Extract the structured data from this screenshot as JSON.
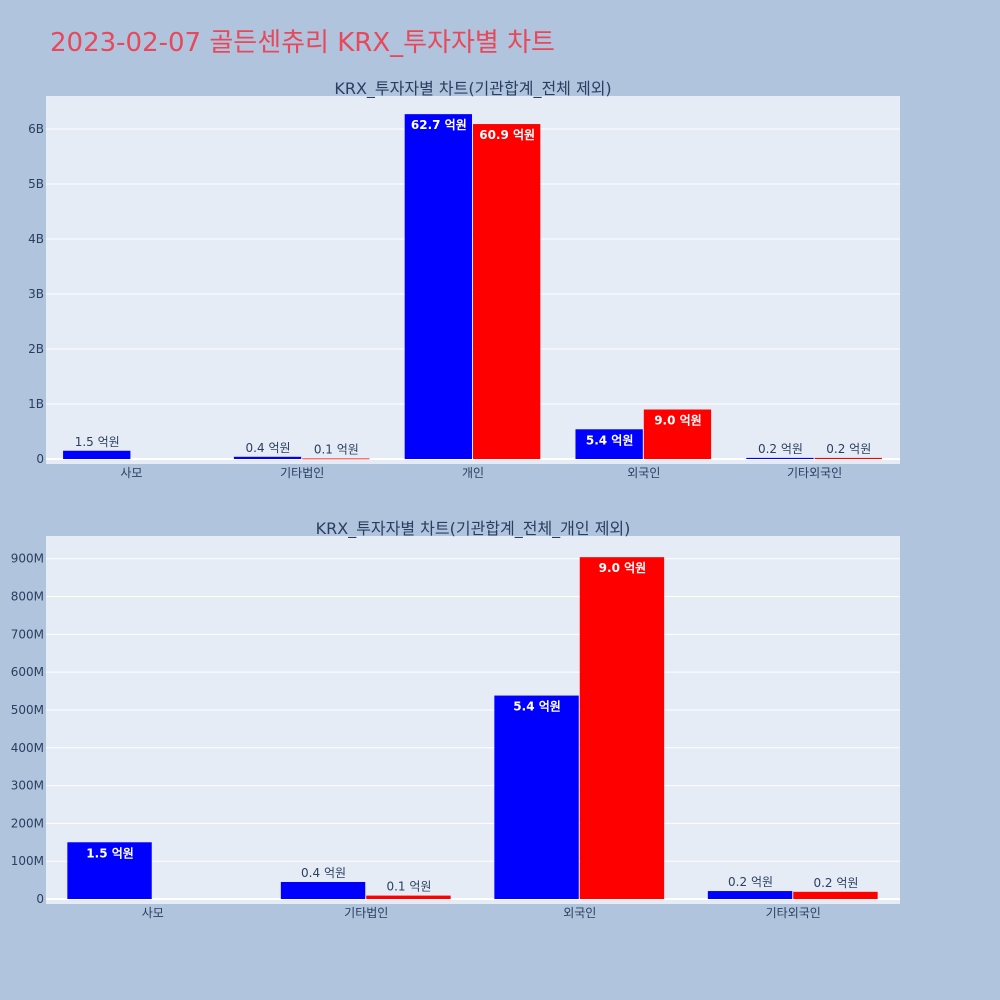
{
  "title": "2023-02-07 골든센츄리 KRX_투자자별 차트",
  "colors": {
    "buy": "#0000ff",
    "sell": "#ff0000"
  },
  "chart_data": [
    {
      "type": "bar",
      "title": "KRX_투자자별 차트(기관합계_전체 제외)",
      "categories": [
        "사모",
        "기타법인",
        "개인",
        "외국인",
        "기타외국인"
      ],
      "series": [
        {
          "values": [
            150000000,
            40000000,
            6270000000,
            540000000,
            20000000
          ],
          "labels": [
            "1.5 억원",
            "0.4 억원",
            "62.7 억원",
            "5.4 억원",
            "0.2 억원"
          ]
        },
        {
          "values": [
            0,
            10000000,
            6090000000,
            900000000,
            20000000
          ],
          "labels": [
            "",
            "0.1 억원",
            "60.9 억원",
            "9.0 억원",
            "0.2 억원"
          ]
        }
      ],
      "ylim": [
        0,
        6600000000
      ],
      "yticks": [
        0,
        1000000000,
        2000000000,
        3000000000,
        4000000000,
        5000000000,
        6000000000
      ],
      "yticklabels": [
        "0",
        "1B",
        "2B",
        "3B",
        "4B",
        "5B",
        "6B"
      ],
      "grid": true
    },
    {
      "type": "bar",
      "title": "KRX_투자자별 차트(기관합계_전체_개인 제외)",
      "categories": [
        "사모",
        "기타법인",
        "외국인",
        "기타외국인"
      ],
      "series": [
        {
          "values": [
            150000000,
            45000000,
            538000000,
            21000000
          ],
          "labels": [
            "1.5 억원",
            "0.4 억원",
            "5.4 억원",
            "0.2 억원"
          ]
        },
        {
          "values": [
            0,
            9000000,
            904000000,
            19000000
          ],
          "labels": [
            "",
            "0.1 억원",
            "9.0 억원",
            "0.2 억원"
          ]
        }
      ],
      "ylim": [
        0,
        960000000
      ],
      "yticks": [
        0,
        100000000,
        200000000,
        300000000,
        400000000,
        500000000,
        600000000,
        700000000,
        800000000,
        900000000
      ],
      "yticklabels": [
        "0",
        "100M",
        "200M",
        "300M",
        "400M",
        "500M",
        "600M",
        "700M",
        "800M",
        "900M"
      ],
      "grid": true
    }
  ]
}
